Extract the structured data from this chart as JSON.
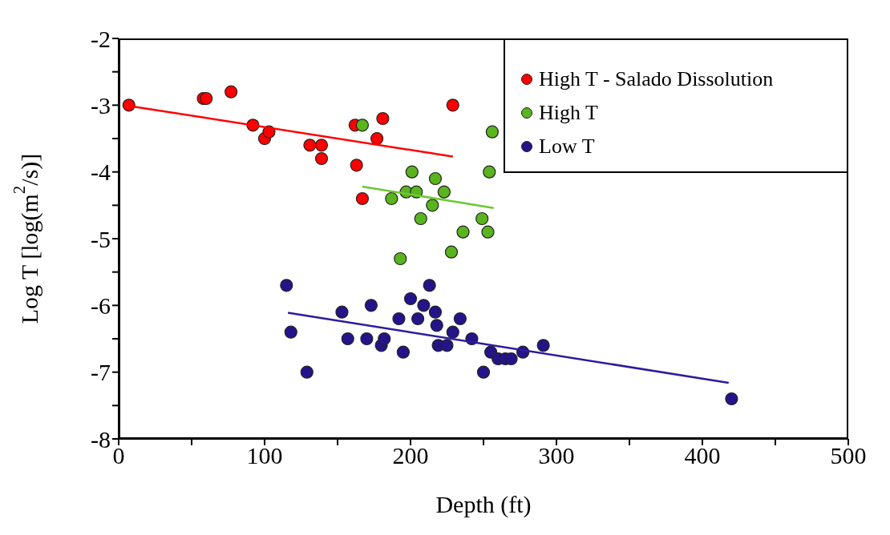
{
  "chart_data": {
    "type": "scatter",
    "xlabel": "Depth (ft)",
    "ylabel": "Log T [log(m$^{2}$/s)]",
    "xlim": [
      0,
      500
    ],
    "xticks": [
      0,
      {
        "value": 50,
        "label": null
      },
      100,
      {
        "value": 150,
        "label": null
      },
      200,
      {
        "value": 250,
        "label": null
      },
      300,
      {
        "value": 350,
        "label": null
      },
      400,
      {
        "value": 450,
        "label": null
      },
      500
    ],
    "ylim": [
      -8,
      -2
    ],
    "yticks": [
      -8,
      {
        "value": -7.5,
        "label": null
      },
      -7,
      {
        "value": -6.5,
        "label": null
      },
      -6,
      {
        "value": -5.5,
        "label": null
      },
      -5,
      {
        "value": -4.5,
        "label": null
      },
      -4,
      {
        "value": -3.5,
        "label": null
      },
      -3,
      {
        "value": -2.5,
        "label": null
      },
      -2
    ],
    "legend": "top right",
    "marker": "circle",
    "line_style": "solid",
    "series": [
      {
        "name": "High T - Salado Dissolution",
        "color": "#ff0000",
        "x": [
          7,
          58,
          60,
          77,
          92,
          100,
          103,
          131,
          139,
          139,
          162,
          163,
          177,
          181,
          167,
          229
        ],
        "values": [
          -3.0,
          -2.9,
          -2.9,
          -2.8,
          -3.3,
          -3.5,
          -3.4,
          -3.6,
          -3.6,
          -3.8,
          -3.3,
          -3.9,
          -3.5,
          -3.2,
          -4.4,
          -3.0
        ]
      },
      {
        "name": "High T",
        "color": "#5ab41e",
        "x": [
          167,
          256,
          201,
          217,
          254,
          197,
          204,
          223,
          187,
          215,
          207,
          249,
          236,
          253,
          228,
          193
        ],
        "values": [
          -3.3,
          -3.4,
          -4.0,
          -4.1,
          -4.0,
          -4.3,
          -4.3,
          -4.3,
          -4.4,
          -4.5,
          -4.7,
          -4.7,
          -4.9,
          -4.9,
          -5.2,
          -5.3
        ]
      },
      {
        "name": "Low T",
        "color": "#24148a",
        "x": [
          115,
          118,
          129,
          153,
          157,
          173,
          170,
          180,
          182,
          192,
          195,
          200,
          205,
          209,
          213,
          217,
          218,
          219,
          225,
          229,
          234,
          242,
          250,
          255,
          260,
          265,
          269,
          277,
          291,
          420
        ],
        "values": [
          -5.7,
          -6.4,
          -7.0,
          -6.1,
          -6.5,
          -6.0,
          -6.5,
          -6.6,
          -6.5,
          -6.2,
          -6.7,
          -5.9,
          -6.2,
          -6.0,
          -5.7,
          -6.1,
          -6.3,
          -6.6,
          -6.6,
          -6.4,
          -6.2,
          -6.5,
          -7.0,
          -6.7,
          -6.8,
          -6.8,
          -6.8,
          -6.7,
          -6.6,
          -7.4
        ]
      },
      {
        "type": "line",
        "marker": "none",
        "color": "#ff0000",
        "x": [
          7,
          229
        ],
        "values": [
          -3.01,
          -3.77
        ]
      },
      {
        "type": "line",
        "marker": "none",
        "color": "#6cc832",
        "x": [
          167,
          257
        ],
        "values": [
          -4.22,
          -4.54
        ]
      },
      {
        "type": "line",
        "marker": "none",
        "color": "#2c1c9c",
        "x": [
          116,
          418
        ],
        "values": [
          -6.11,
          -7.16
        ]
      }
    ]
  }
}
